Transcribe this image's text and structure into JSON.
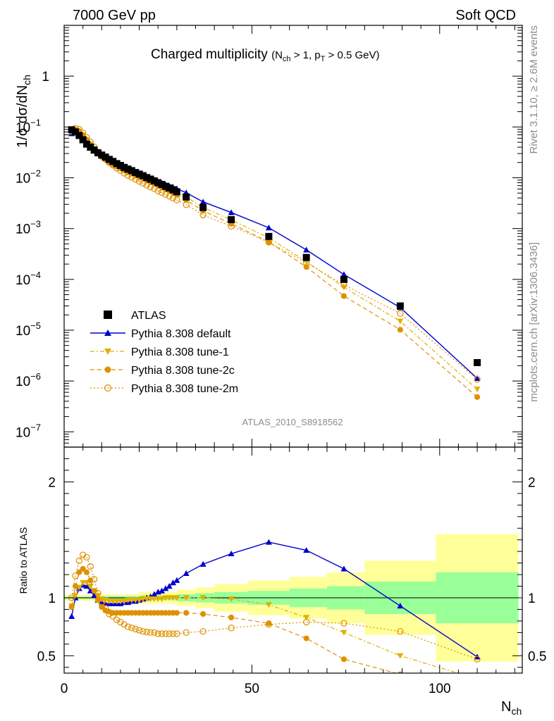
{
  "header": {
    "left": "7000 GeV pp",
    "right": "Soft QCD"
  },
  "side": {
    "top": "Rivet 3.1.10, ≥ 2.6M events",
    "bottom": "mcplots.cern.ch [arXiv:1306.3436]"
  },
  "chart_data": {
    "type": "line",
    "title": "Charged multiplicity",
    "title_sub": "(N_ch > 1, p_T > 0.5 GeV)",
    "title_sub_parts": {
      "open": "(N",
      "ch": "ch",
      "mid": " > 1, p",
      "T": "T",
      "close": " > 0.5 GeV)"
    },
    "analysis_label": "ATLAS_2010_S8918562",
    "xlabel": "N",
    "xlabel_sub": "ch",
    "ylabel": "1/σ dσ/dN",
    "ylabel_sub": "ch",
    "ratio_ylabel": "Ratio to ATLAS",
    "xlim": [
      0,
      122
    ],
    "ylim": [
      5e-08,
      10
    ],
    "ratio_ylim": [
      0.35,
      2.3
    ],
    "log_y": true,
    "legend_position": "lower-left",
    "x_ticks": [
      {
        "v": 0,
        "label": "0"
      },
      {
        "v": 50,
        "label": "50"
      },
      {
        "v": 100,
        "label": "100"
      }
    ],
    "y_ticks": [
      {
        "v": 1e-07,
        "m": "10",
        "e": "−7"
      },
      {
        "v": 1e-06,
        "m": "10",
        "e": "−6"
      },
      {
        "v": 1e-05,
        "m": "10",
        "e": "−5"
      },
      {
        "v": 0.0001,
        "m": "10",
        "e": "−4"
      },
      {
        "v": 0.001,
        "m": "10",
        "e": "−3"
      },
      {
        "v": 0.01,
        "m": "10",
        "e": "−2"
      },
      {
        "v": 0.1,
        "m": "10",
        "e": "−1"
      },
      {
        "v": 1,
        "m": "1",
        "e": ""
      }
    ],
    "ratio_ticks": [
      {
        "v": 0.5,
        "label": "0.5"
      },
      {
        "v": 1,
        "label": "1"
      },
      {
        "v": 2,
        "label": "2"
      }
    ],
    "x": [
      2,
      3,
      4,
      5,
      6,
      7,
      8,
      9,
      10,
      11,
      12,
      13,
      14,
      15,
      16,
      17,
      18,
      19,
      20,
      21,
      22,
      23,
      24,
      25,
      26,
      27,
      28,
      29,
      30,
      32.5,
      37,
      44.5,
      54.5,
      64.5,
      74.5,
      89.5,
      110
    ],
    "ratio_bands": [
      {
        "x0": 0,
        "x1": 10,
        "stat": 0.01,
        "tot": 0.025
      },
      {
        "x0": 10,
        "x1": 20,
        "stat": 0.015,
        "tot": 0.03
      },
      {
        "x0": 20,
        "x1": 30,
        "stat": 0.02,
        "tot": 0.05
      },
      {
        "x0": 30,
        "x1": 35,
        "stat": 0.03,
        "tot": 0.07
      },
      {
        "x0": 35,
        "x1": 40,
        "stat": 0.04,
        "tot": 0.09
      },
      {
        "x0": 40,
        "x1": 49,
        "stat": 0.05,
        "tot": 0.12
      },
      {
        "x0": 49,
        "x1": 60,
        "stat": 0.06,
        "tot": 0.15
      },
      {
        "x0": 60,
        "x1": 70,
        "stat": 0.08,
        "tot": 0.18
      },
      {
        "x0": 70,
        "x1": 80,
        "stat": 0.1,
        "tot": 0.22
      },
      {
        "x0": 80,
        "x1": 99,
        "stat": 0.14,
        "tot": 0.32
      },
      {
        "x0": 99,
        "x1": 121,
        "stat": 0.22,
        "tot": 0.55
      }
    ],
    "series": [
      {
        "name": "ATLAS",
        "style": "data",
        "color": "#000000",
        "values": [
          0.088,
          0.08,
          0.068,
          0.056,
          0.046,
          0.04,
          0.035,
          0.031,
          0.028,
          0.0255,
          0.023,
          0.021,
          0.019,
          0.0175,
          0.016,
          0.0148,
          0.0138,
          0.0127,
          0.0118,
          0.011,
          0.0101,
          0.0094,
          0.0087,
          0.008,
          0.0074,
          0.0068,
          0.0063,
          0.0058,
          0.0053,
          0.0042,
          0.0026,
          0.0015,
          0.0007,
          0.00027,
          0.0001,
          3e-05,
          2.3e-06
        ]
      },
      {
        "name": "Pythia 8.308 default",
        "style": "default",
        "color": "#0000cc",
        "ratio": [
          0.84,
          1.0,
          1.08,
          1.11,
          1.1,
          1.06,
          1.02,
          0.98,
          0.96,
          0.95,
          0.95,
          0.95,
          0.95,
          0.95,
          0.96,
          0.96,
          0.97,
          0.97,
          0.98,
          0.99,
          1.0,
          1.01,
          1.03,
          1.05,
          1.06,
          1.08,
          1.1,
          1.13,
          1.15,
          1.21,
          1.29,
          1.38,
          1.48,
          1.41,
          1.25,
          0.93,
          0.49
        ]
      },
      {
        "name": "Pythia 8.308 tune-1",
        "style": "tune1",
        "color": "#e0b000",
        "ratio": [
          0.93,
          1.02,
          1.09,
          1.13,
          1.13,
          1.1,
          1.06,
          1.02,
          0.99,
          0.98,
          0.97,
          0.97,
          0.97,
          0.97,
          0.97,
          0.98,
          0.98,
          0.98,
          0.98,
          0.99,
          0.99,
          0.99,
          0.99,
          0.99,
          0.99,
          1.0,
          1.0,
          1.0,
          1.0,
          1.0,
          1.0,
          0.99,
          0.94,
          0.83,
          0.7,
          0.5,
          0.3
        ]
      },
      {
        "name": "Pythia 8.308 tune-2c",
        "style": "tune2c",
        "color": "#e09000",
        "ratio": [
          0.92,
          1.1,
          1.22,
          1.25,
          1.22,
          1.15,
          1.06,
          0.98,
          0.92,
          0.89,
          0.88,
          0.87,
          0.87,
          0.87,
          0.87,
          0.87,
          0.87,
          0.87,
          0.87,
          0.87,
          0.87,
          0.87,
          0.87,
          0.87,
          0.87,
          0.87,
          0.87,
          0.87,
          0.87,
          0.87,
          0.86,
          0.83,
          0.78,
          0.65,
          0.47,
          0.34,
          0.21
        ]
      },
      {
        "name": "Pythia 8.308 tune-2m",
        "style": "tune2m",
        "color": "#e09000",
        "ratio": [
          1.0,
          1.19,
          1.32,
          1.37,
          1.35,
          1.27,
          1.16,
          1.04,
          0.96,
          0.91,
          0.86,
          0.84,
          0.81,
          0.79,
          0.77,
          0.75,
          0.74,
          0.73,
          0.72,
          0.71,
          0.705,
          0.7,
          0.7,
          0.69,
          0.69,
          0.69,
          0.69,
          0.69,
          0.69,
          0.7,
          0.71,
          0.74,
          0.77,
          0.79,
          0.78,
          0.71,
          0.47
        ]
      }
    ]
  }
}
